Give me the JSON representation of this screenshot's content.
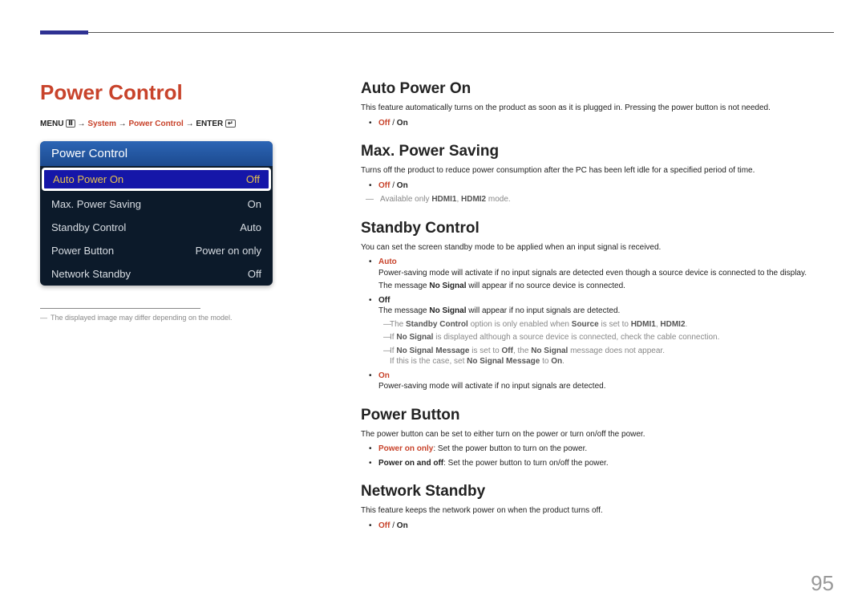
{
  "page_number": "95",
  "left": {
    "title": "Power Control",
    "breadcrumb": {
      "menu": "MENU",
      "system": "System",
      "power_control": "Power Control",
      "enter": "ENTER",
      "arrow": "→"
    },
    "panel": {
      "title": "Power Control",
      "rows": [
        {
          "label": "Auto Power On",
          "value": "Off",
          "selected": true
        },
        {
          "label": "Max. Power Saving",
          "value": "On",
          "selected": false
        },
        {
          "label": "Standby Control",
          "value": "Auto",
          "selected": false
        },
        {
          "label": "Power Button",
          "value": "Power on only",
          "selected": false
        },
        {
          "label": "Network Standby",
          "value": "Off",
          "selected": false
        }
      ]
    },
    "footnote": "The displayed image may differ depending on the model."
  },
  "right": {
    "auto_power_on": {
      "title": "Auto Power On",
      "desc": "This feature automatically turns on the product as soon as it is plugged in. Pressing the power button is not needed.",
      "opt_off": "Off",
      "opt_slash": " / ",
      "opt_on": "On"
    },
    "max_power_saving": {
      "title": "Max. Power Saving",
      "desc": "Turns off the product to reduce power consumption after the PC has been left idle for a specified period of time.",
      "opt_off": "Off",
      "opt_slash": " / ",
      "opt_on": "On",
      "note_pre": "Available only ",
      "note_b1": "HDMI1",
      "note_c": ", ",
      "note_b2": "HDMI2",
      "note_post": " mode."
    },
    "standby": {
      "title": "Standby Control",
      "desc": "You can set the screen standby mode to be applied when an input signal is received.",
      "auto_label": "Auto",
      "auto_line1": "Power-saving mode will activate if no input signals are detected even though a source device is connected to the display.",
      "auto_line2a": "The message ",
      "auto_line2b": "No Signal",
      "auto_line2c": " will appear if no source device is connected.",
      "off_label": "Off",
      "off_line_a": "The message ",
      "off_line_b": "No Signal",
      "off_line_c": " will appear if no input signals are detected.",
      "note1_a": "The ",
      "note1_b": "Standby Control",
      "note1_c": " option is only enabled when ",
      "note1_d": "Source",
      "note1_e": " is set to ",
      "note1_f": "HDMI1",
      "note1_g": ", ",
      "note1_h": "HDMI2",
      "note1_i": ".",
      "note2_a": "If ",
      "note2_b": "No Signal",
      "note2_c": " is displayed although a source device is connected, check the cable connection.",
      "note3_a": "If ",
      "note3_b": "No Signal Message",
      "note3_c": " is set to ",
      "note3_d": "Off",
      "note3_e": ", the ",
      "note3_f": "No Signal",
      "note3_g": " message does not appear.",
      "note3_line2_a": "If this is the case, set ",
      "note3_line2_b": "No Signal Message",
      "note3_line2_c": " to ",
      "note3_line2_d": "On",
      "note3_line2_e": ".",
      "on_label": "On",
      "on_line": "Power-saving mode will activate if no input signals are detected."
    },
    "power_button": {
      "title": "Power Button",
      "desc": "The power button can be set to either turn on the power or turn on/off the power.",
      "opt1_label": "Power on only",
      "opt1_desc": ": Set the power button to turn on the power.",
      "opt2_label": "Power on and off",
      "opt2_desc": ": Set the power button to turn on/off the power."
    },
    "network_standby": {
      "title": "Network Standby",
      "desc": "This feature keeps the network power on when the product turns off.",
      "opt_off": "Off",
      "opt_slash": " / ",
      "opt_on": "On"
    }
  }
}
